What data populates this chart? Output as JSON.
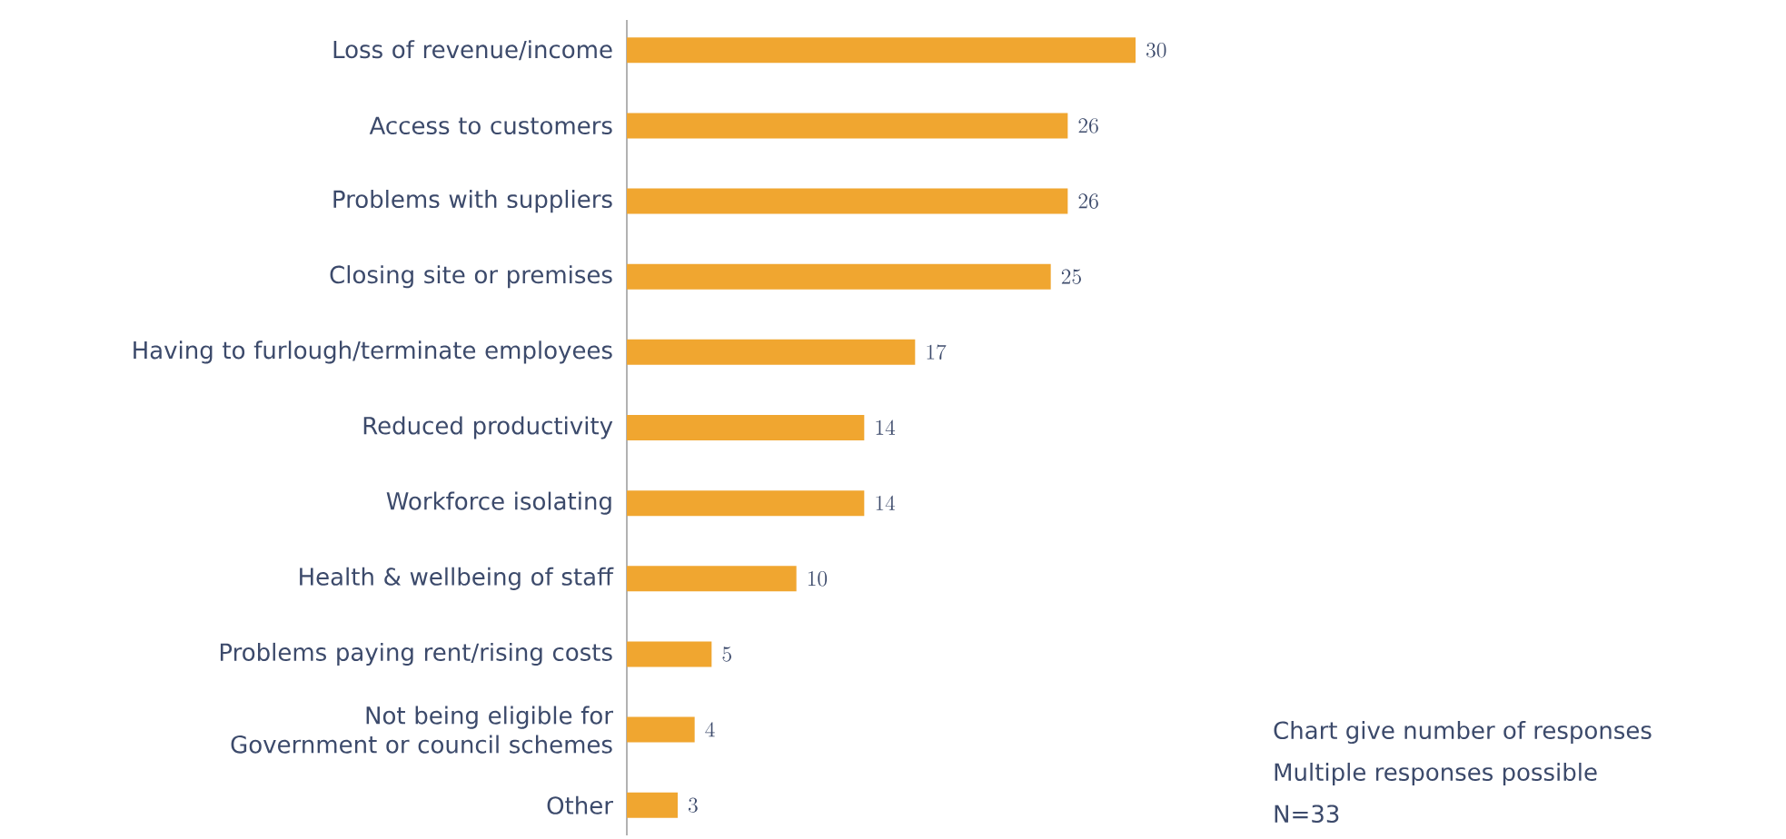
{
  "chart_data": {
    "type": "bar",
    "orientation": "horizontal",
    "data_labels": true,
    "color": "#f0a630",
    "categories": [
      "Loss of revenue/income",
      "Access to customers",
      "Problems with suppliers",
      "Closing site or premises",
      "Having to furlough/terminate employees",
      "Reduced productivity",
      "Workforce isolating",
      "Health & wellbeing of staff",
      "Problems paying rent/rising costs",
      "Not being eligible for Government or council schemes",
      "Other"
    ],
    "values": [
      30,
      26,
      26,
      25,
      17,
      14,
      14,
      10,
      5,
      4,
      3
    ],
    "annotations": [
      "Chart give number of responses",
      "Multiple responses possible",
      "N=33"
    ]
  }
}
